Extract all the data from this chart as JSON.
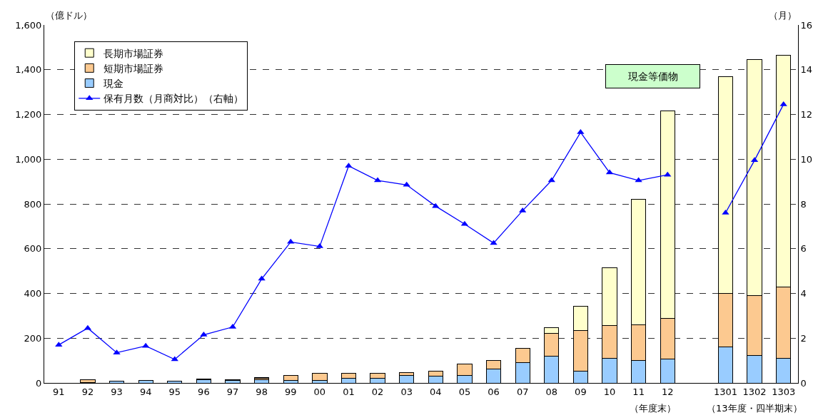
{
  "chart_data": {
    "type": "bar",
    "stacked": true,
    "ylabel": "（億ドル）",
    "y2label": "（月）",
    "categories": [
      "91",
      "92",
      "93",
      "94",
      "95",
      "96",
      "97",
      "98",
      "99",
      "00",
      "01",
      "02",
      "03",
      "04",
      "05",
      "06",
      "07",
      "08",
      "09",
      "10",
      "11",
      "12",
      null,
      "1301",
      "1302",
      "1303"
    ],
    "series": [
      {
        "name": "現金",
        "color": "#99ccff",
        "values": [
          null,
          3,
          7,
          11,
          7,
          14,
          10,
          15,
          10,
          11,
          22,
          22,
          34,
          29,
          34,
          63,
          91,
          118,
          52,
          111,
          99,
          107,
          null,
          161,
          122,
          111
        ]
      },
      {
        "name": "短期市場証券",
        "color": "#fcc990",
        "values": [
          null,
          12,
          null,
          null,
          null,
          2,
          3,
          6,
          23,
          32,
          21,
          21,
          12,
          25,
          50,
          37,
          63,
          104,
          181,
          145,
          162,
          183,
          null,
          238,
          268,
          318
        ]
      },
      {
        "name": "長期市場証券",
        "color": "#ffffcc",
        "values": [
          null,
          null,
          null,
          null,
          null,
          2,
          2,
          3,
          null,
          null,
          null,
          null,
          null,
          null,
          null,
          null,
          null,
          24,
          110,
          260,
          561,
          925,
          null,
          971,
          1057,
          1036
        ]
      },
      {
        "name": "保有月数（月商対比）（右軸）",
        "type": "line",
        "axis": "y2",
        "color": "#0000ff",
        "marker": "triangle",
        "values": [
          1.7,
          2.45,
          1.35,
          1.65,
          1.05,
          2.15,
          2.5,
          4.65,
          6.3,
          6.1,
          9.7,
          9.05,
          8.85,
          7.9,
          7.1,
          6.25,
          7.7,
          9.05,
          11.2,
          9.4,
          9.05,
          9.3,
          null,
          7.6,
          9.95,
          12.45
        ]
      }
    ],
    "ylim": [
      0,
      1600
    ],
    "yticks": [
      0,
      200,
      400,
      600,
      800,
      {
        "value": 1000,
        "label": "1,000"
      },
      {
        "value": 1200,
        "label": "1,200"
      },
      {
        "value": 1400,
        "label": "1,400"
      },
      {
        "value": 1600,
        "label": "1,600"
      }
    ],
    "y2lim": [
      0,
      16
    ],
    "y2ticks": [
      0,
      2,
      4,
      6,
      8,
      10,
      12,
      14,
      16
    ],
    "grid": "y",
    "legend": "top left",
    "annotations": [
      "現金等価物",
      "（年度末）",
      "（13年度・四半期末）"
    ]
  }
}
